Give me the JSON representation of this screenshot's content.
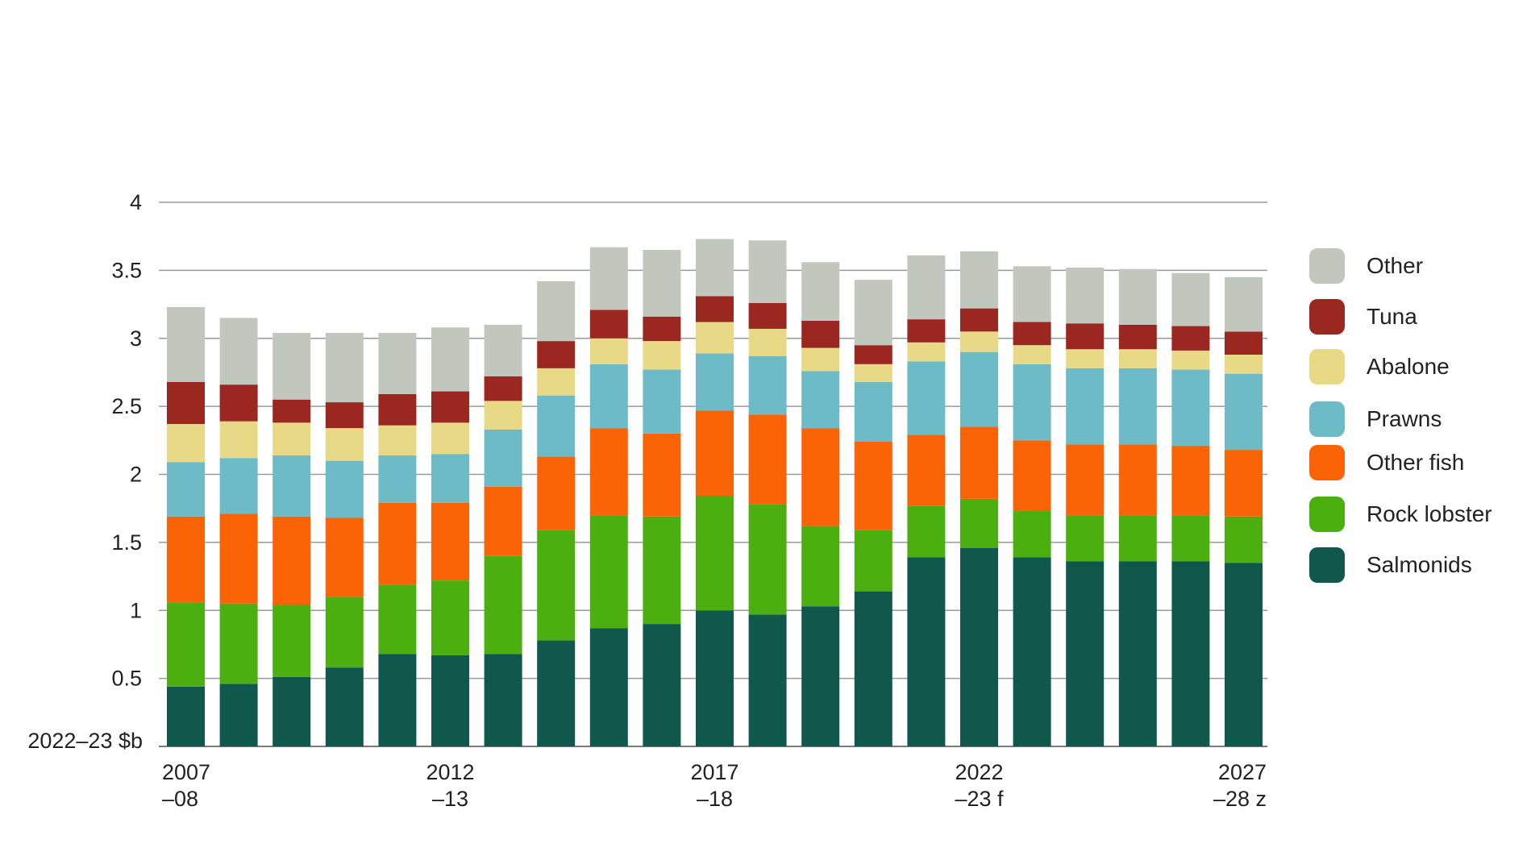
{
  "chart_data": {
    "type": "bar",
    "stacked": true,
    "title": "",
    "xlabel": "",
    "ylabel": "2022–23 $b",
    "ylim": [
      0,
      4
    ],
    "yticks": [
      "0.5",
      "1",
      "1.5",
      "2",
      "2.5",
      "3",
      "3.5",
      "4"
    ],
    "grid": true,
    "legend_position": "right",
    "x_tick_labels": [
      {
        "line1": "2007",
        "line2": "–08"
      },
      {
        "line1": "2012",
        "line2": "–13"
      },
      {
        "line1": "2017",
        "line2": "–18"
      },
      {
        "line1": "2022",
        "line2": "–23 f"
      },
      {
        "line1": "2027",
        "line2": "–28 z"
      }
    ],
    "categories": [
      "2007–08",
      "2008–09",
      "2009–10",
      "2010–11",
      "2011–12",
      "2012–13",
      "2013–14",
      "2014–15",
      "2015–16",
      "2016–17",
      "2017–18",
      "2018–19",
      "2019–20",
      "2020–21",
      "2021–22",
      "2022–23 f",
      "2023–24 z",
      "2024–25 z",
      "2025–26 z",
      "2026–27 z",
      "2027–28 z"
    ],
    "series": [
      {
        "name": "Salmonids",
        "color": "#10574c",
        "values": [
          0.44,
          0.46,
          0.51,
          0.58,
          0.68,
          0.67,
          0.68,
          0.78,
          0.87,
          0.9,
          1.0,
          0.97,
          1.03,
          1.14,
          1.39,
          1.46,
          1.39,
          1.36,
          1.36,
          1.36,
          1.35
        ]
      },
      {
        "name": "Rock lobster",
        "color": "#4caf10",
        "values": [
          0.62,
          0.59,
          0.53,
          0.52,
          0.51,
          0.55,
          0.72,
          0.81,
          0.83,
          0.79,
          0.84,
          0.81,
          0.59,
          0.45,
          0.38,
          0.36,
          0.34,
          0.34,
          0.34,
          0.34,
          0.34
        ]
      },
      {
        "name": "Other fish",
        "color": "#fa6306",
        "values": [
          0.63,
          0.66,
          0.65,
          0.58,
          0.6,
          0.57,
          0.51,
          0.54,
          0.64,
          0.61,
          0.63,
          0.66,
          0.72,
          0.65,
          0.52,
          0.53,
          0.52,
          0.52,
          0.52,
          0.51,
          0.49
        ]
      },
      {
        "name": "Prawns",
        "color": "#6cbbc6",
        "values": [
          0.4,
          0.41,
          0.45,
          0.42,
          0.35,
          0.36,
          0.42,
          0.45,
          0.47,
          0.47,
          0.42,
          0.43,
          0.42,
          0.44,
          0.54,
          0.55,
          0.56,
          0.56,
          0.56,
          0.56,
          0.56
        ]
      },
      {
        "name": "Abalone",
        "color": "#e8d986",
        "values": [
          0.28,
          0.27,
          0.24,
          0.24,
          0.22,
          0.23,
          0.21,
          0.2,
          0.19,
          0.21,
          0.23,
          0.2,
          0.17,
          0.13,
          0.14,
          0.15,
          0.14,
          0.14,
          0.14,
          0.14,
          0.14
        ]
      },
      {
        "name": "Tuna",
        "color": "#9a2821",
        "values": [
          0.31,
          0.27,
          0.17,
          0.19,
          0.23,
          0.23,
          0.18,
          0.2,
          0.21,
          0.18,
          0.19,
          0.19,
          0.2,
          0.14,
          0.17,
          0.17,
          0.17,
          0.19,
          0.18,
          0.18,
          0.17
        ]
      },
      {
        "name": "Other",
        "color": "#c2c7be",
        "values": [
          0.55,
          0.49,
          0.49,
          0.51,
          0.45,
          0.47,
          0.38,
          0.44,
          0.46,
          0.49,
          0.42,
          0.46,
          0.43,
          0.48,
          0.47,
          0.42,
          0.41,
          0.41,
          0.41,
          0.39,
          0.4
        ]
      }
    ],
    "legend_order": [
      "Other",
      "Tuna",
      "Abalone",
      "Prawns",
      "Other fish",
      "Rock lobster",
      "Salmonids"
    ]
  }
}
